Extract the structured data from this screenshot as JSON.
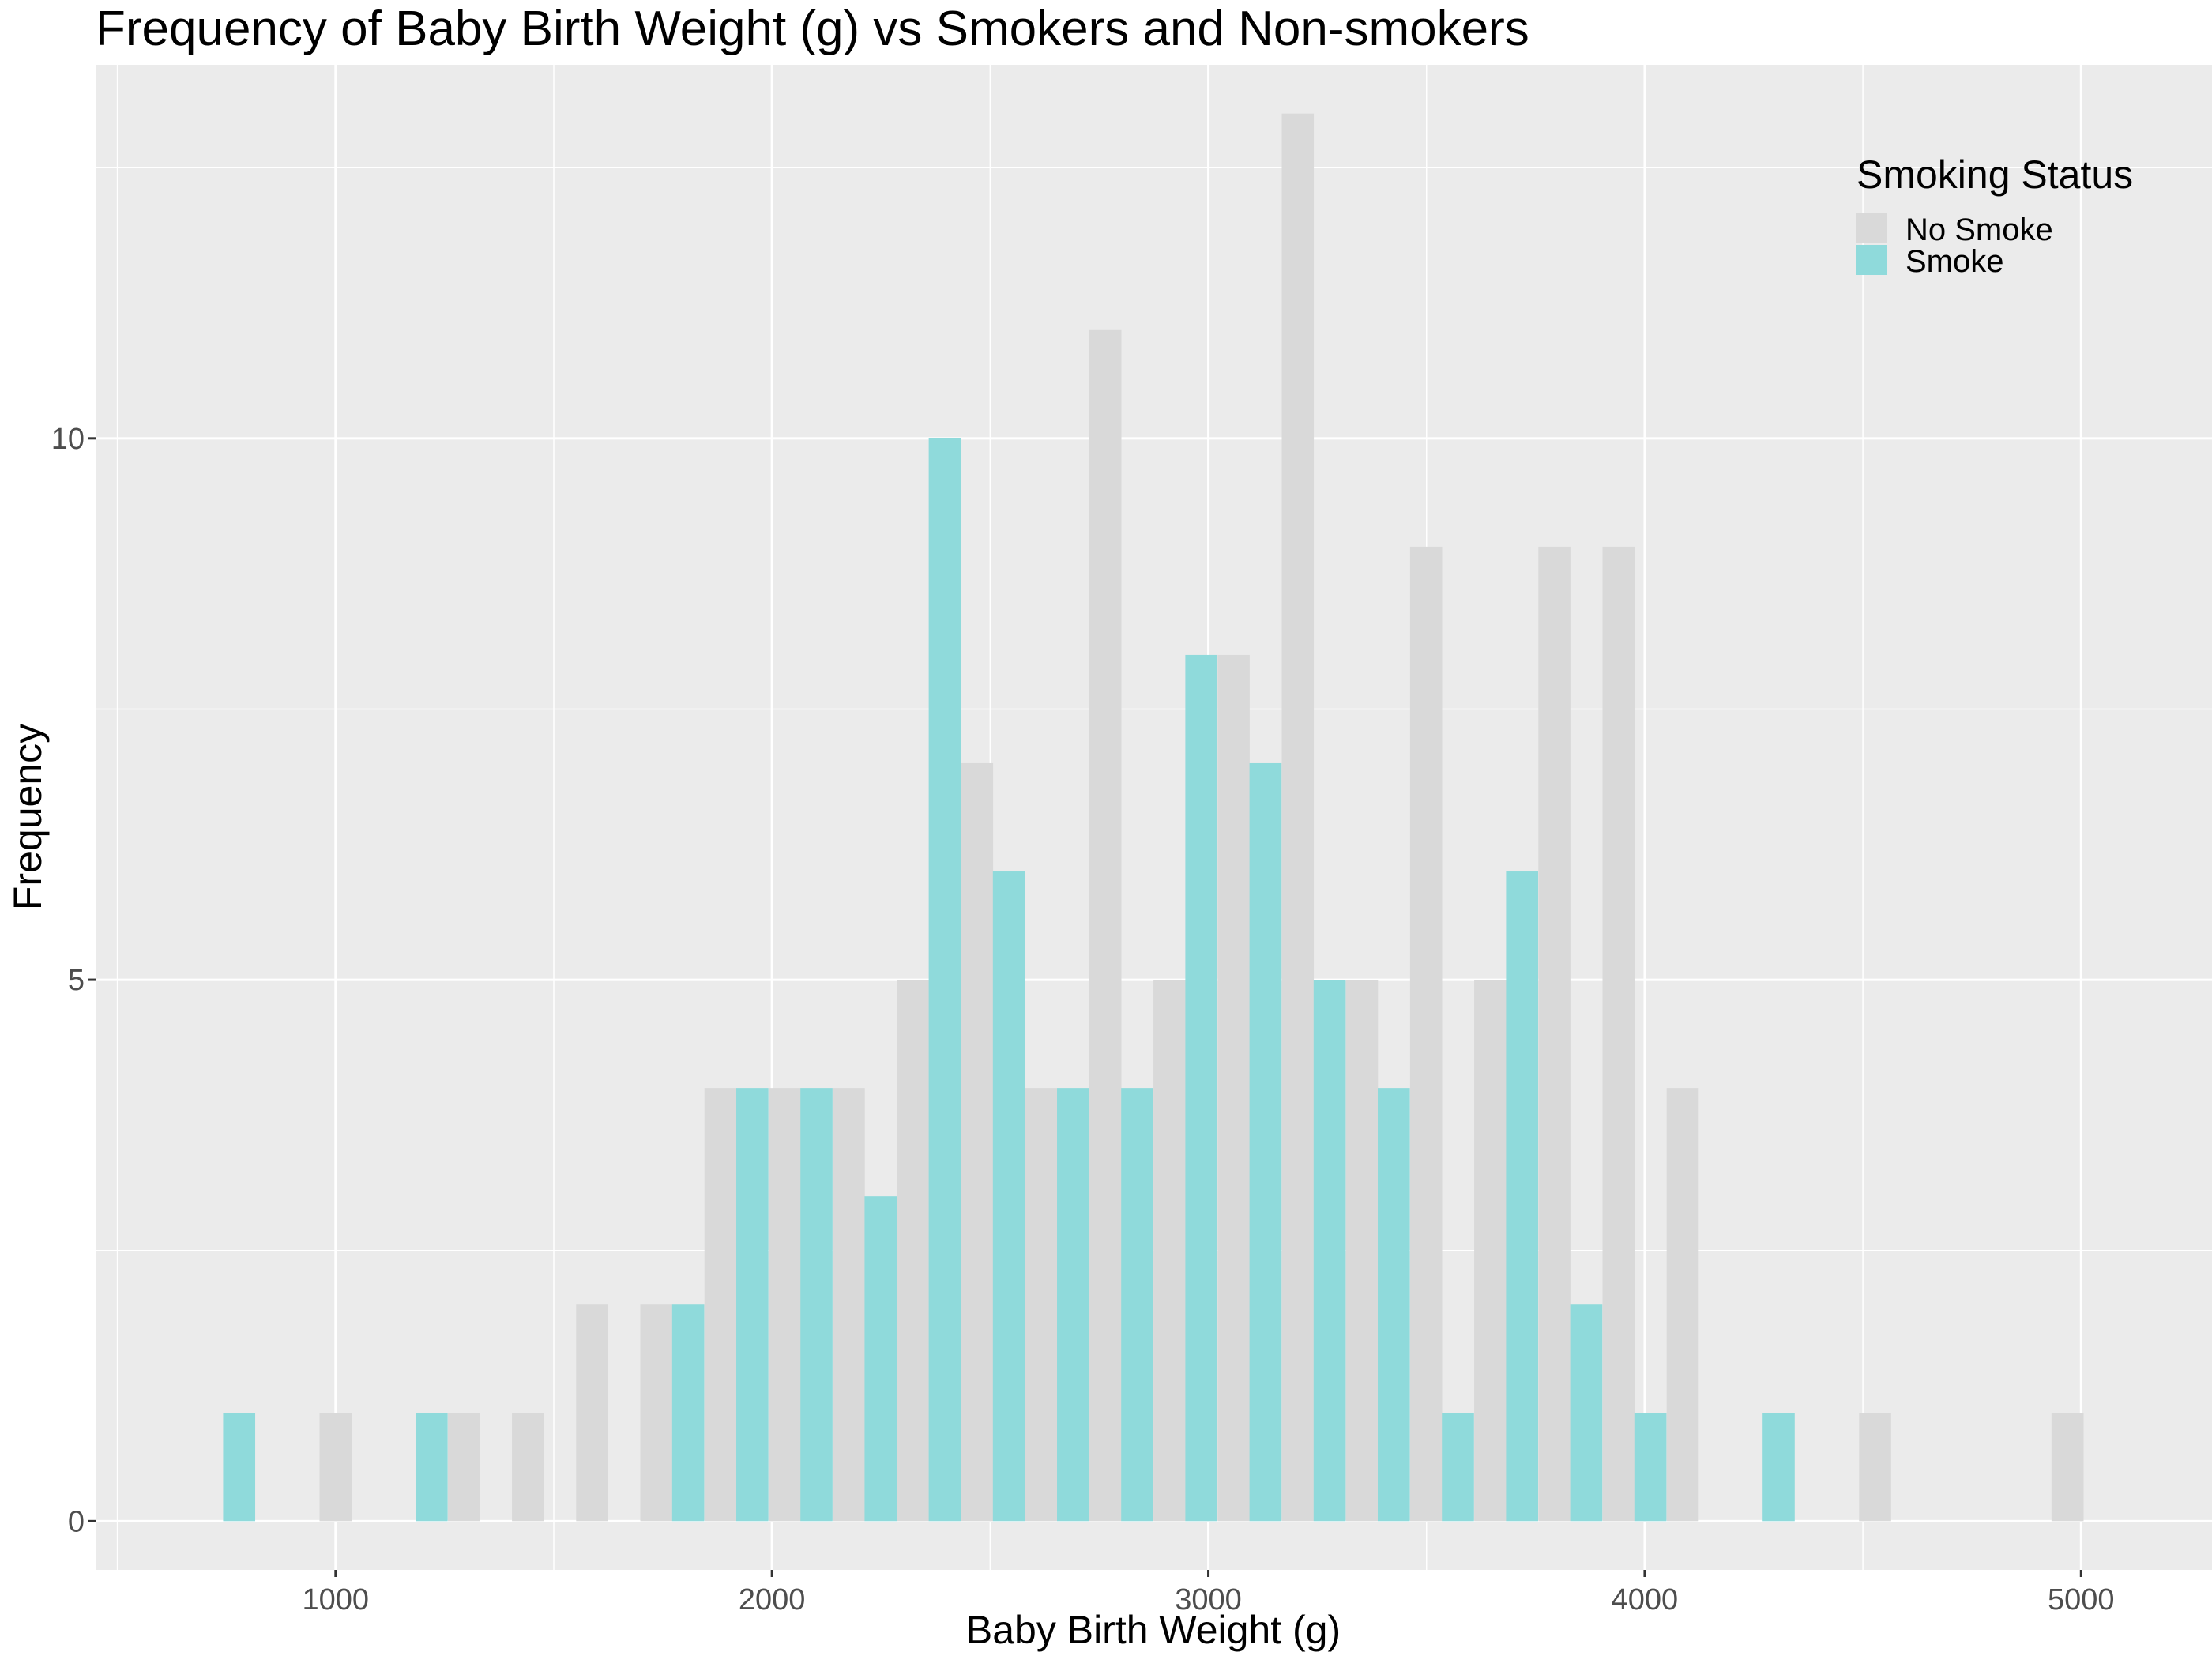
{
  "chart_data": {
    "type": "bar",
    "title": "Frequency of Baby Birth Weight (g) vs Smokers and Non-smokers",
    "xlabel": "Baby Birth Weight (g)",
    "ylabel": "Frequency",
    "xlim": [
      450,
      5300
    ],
    "ylim": [
      -0.45,
      13.45
    ],
    "xticks": [
      1000,
      2000,
      3000,
      4000,
      5000
    ],
    "xtick_labels": [
      "1000",
      "2000",
      "3000",
      "4000",
      "5000"
    ],
    "yticks": [
      0,
      5,
      10
    ],
    "ytick_labels": [
      "0",
      "5",
      "10"
    ],
    "bin_width": 147,
    "legend": {
      "title": "Smoking Status",
      "position": "top-right"
    },
    "grid": true,
    "series": [
      {
        "name": "No Smoke",
        "color": "#d9d9d9",
        "x": [
          1000,
          1294,
          1441,
          1588,
          1735,
          1882,
          2029,
          2176,
          2323,
          2470,
          2617,
          2764,
          2911,
          3058,
          3205,
          3352,
          3499,
          3646,
          3793,
          3940,
          4087,
          4528,
          4969
        ],
        "values": [
          1,
          1,
          1,
          2,
          2,
          4,
          4,
          4,
          5,
          7,
          4,
          11,
          5,
          8,
          13,
          5,
          9,
          5,
          9,
          9,
          4,
          1,
          1
        ]
      },
      {
        "name": "Smoke",
        "color": "#8fdadb",
        "x": [
          779,
          1220,
          1808,
          1955,
          2102,
          2249,
          2396,
          2543,
          2690,
          2837,
          2984,
          3131,
          3278,
          3425,
          3572,
          3719,
          3866,
          4013,
          4307
        ],
        "values": [
          1,
          1,
          2,
          4,
          4,
          3,
          10,
          6,
          4,
          4,
          8,
          7,
          5,
          4,
          1,
          6,
          2,
          1,
          1
        ]
      }
    ]
  }
}
